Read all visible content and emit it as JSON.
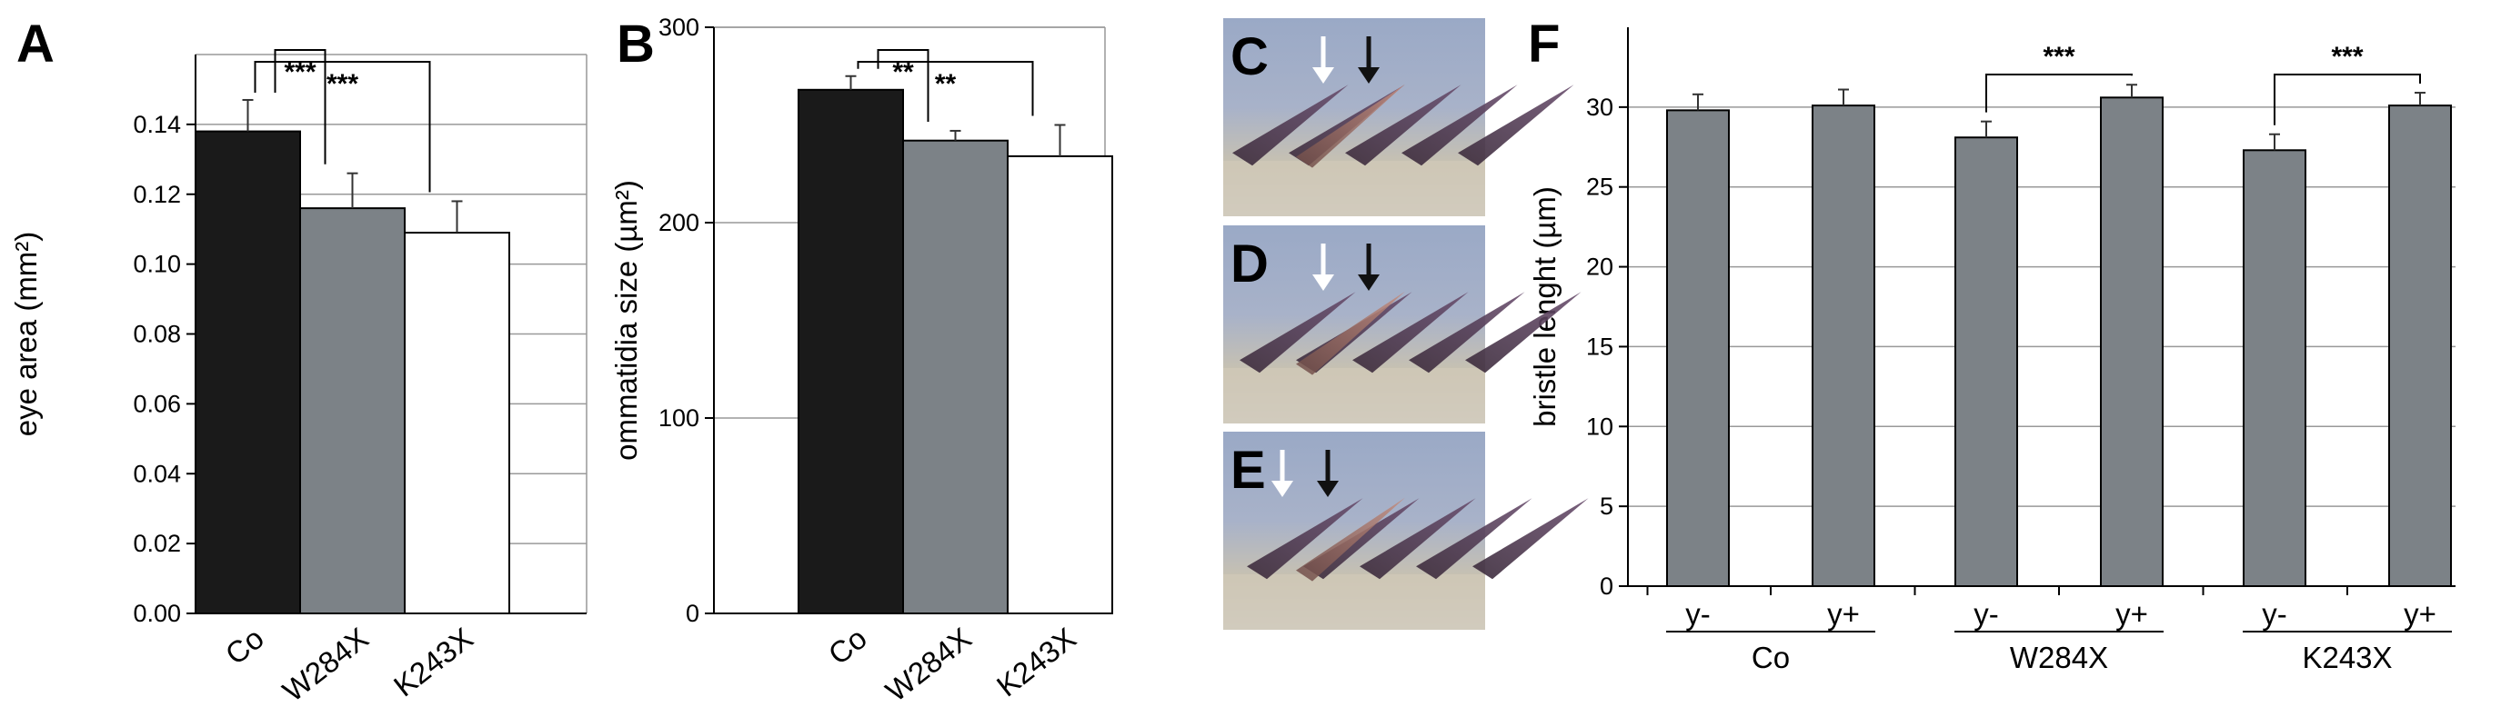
{
  "charts": [
    {
      "letter": "A",
      "chart_data": {
        "type": "bar",
        "ylabel": "eye area (mm²)",
        "ylim": [
          0,
          0.16
        ],
        "yticks": [
          0.0,
          0.02,
          0.04,
          0.06,
          0.08,
          0.1,
          0.12,
          0.14
        ],
        "ytick_labels": [
          "0.00",
          "0.02",
          "0.04",
          "0.06",
          "0.08",
          "0.10",
          "0.12",
          "0.14"
        ],
        "categories": [
          "Co",
          "W284X",
          "K243X"
        ],
        "values": [
          0.138,
          0.116,
          0.109
        ],
        "errors": [
          0.009,
          0.01,
          0.009
        ],
        "colors": [
          "#1a1a1a",
          "#7c8287",
          "#ffffff"
        ],
        "grid": true,
        "significance": [
          {
            "from": 0,
            "to": 1,
            "label": "***"
          },
          {
            "from": 0,
            "to": 2,
            "label": "***"
          }
        ]
      }
    },
    {
      "letter": "B",
      "chart_data": {
        "type": "bar",
        "ylabel": "ommatidia size (µm²)",
        "ylim": [
          0,
          300
        ],
        "yticks": [
          0,
          100,
          200,
          300
        ],
        "ytick_labels": [
          "0",
          "100",
          "200",
          "300"
        ],
        "categories": [
          "Co",
          "W284X",
          "K243X"
        ],
        "values": [
          268,
          242,
          234
        ],
        "errors": [
          7,
          5,
          16
        ],
        "colors": [
          "#1a1a1a",
          "#7c8287",
          "#ffffff"
        ],
        "grid": true,
        "significance": [
          {
            "from": 0,
            "to": 1,
            "label": "**"
          },
          {
            "from": 0,
            "to": 2,
            "label": "**"
          }
        ]
      }
    },
    {
      "letter": "F",
      "chart_data": {
        "type": "bar",
        "ylabel": "bristle lenght (µm)",
        "ylim": [
          0,
          35
        ],
        "yticks": [
          0,
          5,
          10,
          15,
          20,
          25,
          30
        ],
        "ytick_labels": [
          "0",
          "5",
          "10",
          "15",
          "20",
          "25",
          "30"
        ],
        "categories": [
          "y-",
          "y+",
          "y-",
          "y+",
          "y-",
          "y+"
        ],
        "groups": [
          "Co",
          "W284X",
          "K243X"
        ],
        "values": [
          29.8,
          30.1,
          28.1,
          30.6,
          27.3,
          30.1
        ],
        "errors": [
          1.0,
          1.0,
          1.0,
          0.8,
          1.0,
          0.8
        ],
        "colors": [
          "#7c8287",
          "#7c8287",
          "#7c8287",
          "#7c8287",
          "#7c8287",
          "#7c8287"
        ],
        "grid": true,
        "significance": [
          {
            "from": 2,
            "to": 3,
            "label": "***"
          },
          {
            "from": 4,
            "to": 5,
            "label": "***"
          }
        ]
      }
    }
  ],
  "photos": [
    {
      "letter": "C",
      "arrow_colors": [
        "#ffffff",
        "#111111"
      ]
    },
    {
      "letter": "D",
      "arrow_colors": [
        "#ffffff",
        "#111111"
      ]
    },
    {
      "letter": "E",
      "arrow_colors": [
        "#ffffff",
        "#111111"
      ]
    }
  ]
}
